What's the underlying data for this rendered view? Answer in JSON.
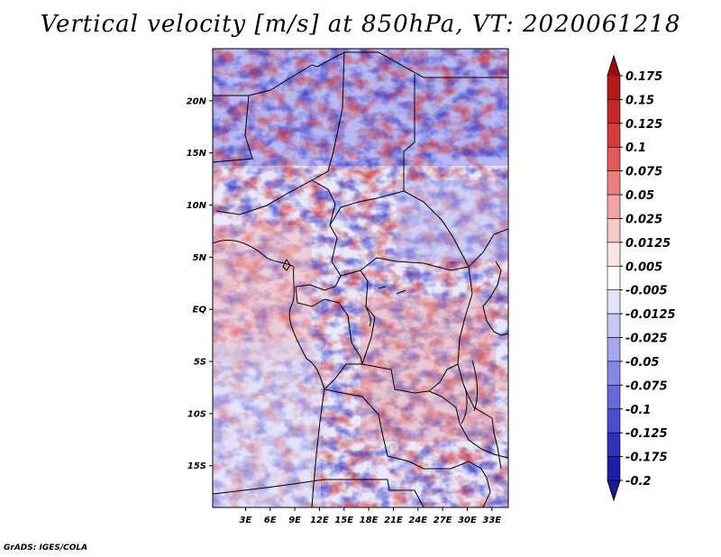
{
  "chart_data": {
    "type": "heatmap",
    "title": "Vertical velocity [m/s] at 850hPa, VT: 2020061218",
    "variable": "Vertical velocity",
    "units": "m/s",
    "level": "850hPa",
    "valid_time": "2020061218",
    "lon_range": [
      -1,
      35
    ],
    "lat_range": [
      -19,
      25
    ],
    "x_ticks": [
      {
        "value": 3,
        "label": "3E"
      },
      {
        "value": 6,
        "label": "6E"
      },
      {
        "value": 9,
        "label": "9E"
      },
      {
        "value": 12,
        "label": "12E"
      },
      {
        "value": 15,
        "label": "15E"
      },
      {
        "value": 18,
        "label": "18E"
      },
      {
        "value": 21,
        "label": "21E"
      },
      {
        "value": 24,
        "label": "24E"
      },
      {
        "value": 27,
        "label": "27E"
      },
      {
        "value": 30,
        "label": "30E"
      },
      {
        "value": 33,
        "label": "33E"
      }
    ],
    "y_ticks": [
      {
        "value": 20,
        "label": "20N"
      },
      {
        "value": 15,
        "label": "15N"
      },
      {
        "value": 10,
        "label": "10N"
      },
      {
        "value": 5,
        "label": "5N"
      },
      {
        "value": 0,
        "label": "EQ"
      },
      {
        "value": -5,
        "label": "5S"
      },
      {
        "value": -10,
        "label": "10S"
      },
      {
        "value": -15,
        "label": "15S"
      }
    ],
    "colorbar": {
      "levels": [
        {
          "label": "0.175",
          "color": "#a01010"
        },
        {
          "label": "0.15",
          "color": "#b51a1a"
        },
        {
          "label": "0.125",
          "color": "#c62828"
        },
        {
          "label": "0.1",
          "color": "#d63b3b"
        },
        {
          "label": "0.075",
          "color": "#e35858"
        },
        {
          "label": "0.05",
          "color": "#ed7e7e"
        },
        {
          "label": "0.025",
          "color": "#f4a4a4"
        },
        {
          "label": "0.0125",
          "color": "#f9c8c8"
        },
        {
          "label": "0.005",
          "color": "#fce4e4"
        },
        {
          "label": "-0.005",
          "color": "#ffffff"
        },
        {
          "label": "-0.0125",
          "color": "#e2e2fb"
        },
        {
          "label": "-0.025",
          "color": "#c6c6f7"
        },
        {
          "label": "-0.05",
          "color": "#a6a6f1"
        },
        {
          "label": "-0.075",
          "color": "#8686e9"
        },
        {
          "label": "-0.1",
          "color": "#6868de"
        },
        {
          "label": "-0.125",
          "color": "#4c4cd0"
        },
        {
          "label": "-0.175",
          "color": "#3030bd"
        },
        {
          "label": "-0.2",
          "color": "#1c1ca6"
        }
      ],
      "top_extension_color": "#9a0e0e",
      "bottom_extension_color": "#1a1a9a",
      "top_fill_color": "#a01010"
    }
  },
  "credit": "GrADS: IGES/COLA"
}
